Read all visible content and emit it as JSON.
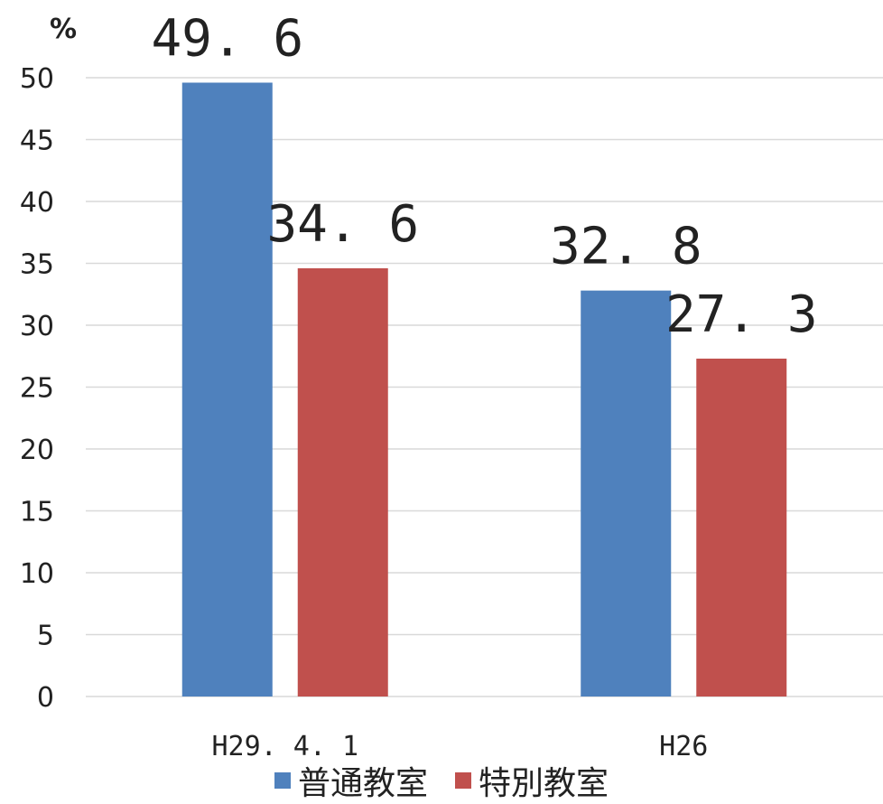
{
  "chart_data": {
    "type": "bar",
    "unit_label": "%",
    "categories": [
      "H29. 4. 1",
      "H26"
    ],
    "series": [
      {
        "name": "普通教室",
        "values": [
          49.6,
          32.8
        ],
        "labels": [
          "49. 6",
          "32. 8"
        ],
        "color": "#4f81bd"
      },
      {
        "name": "特別教室",
        "values": [
          34.6,
          27.3
        ],
        "labels": [
          "34. 6",
          "27. 3"
        ],
        "color": "#c0504d"
      }
    ],
    "ylim": [
      0,
      50
    ],
    "yticks": [
      0,
      5,
      10,
      15,
      20,
      25,
      30,
      35,
      40,
      45,
      50
    ],
    "grid": true,
    "legend_position": "bottom"
  }
}
